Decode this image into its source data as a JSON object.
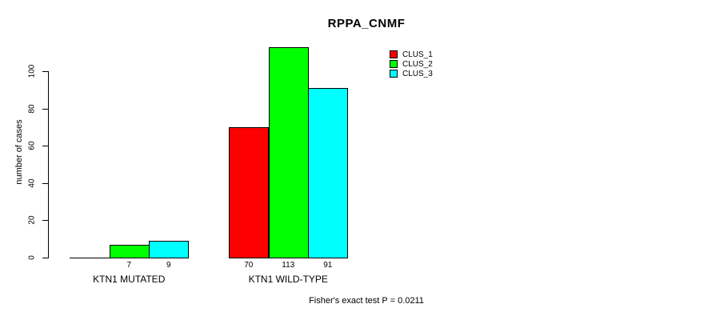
{
  "title": "RPPA_CNMF",
  "chart_data": {
    "type": "bar",
    "title": "RPPA_CNMF",
    "xlabel": "",
    "ylabel": "number of cases",
    "ylim": [
      0,
      100
    ],
    "yticks": [
      0,
      20,
      40,
      60,
      80,
      100
    ],
    "categories": [
      "KTN1 MUTATED",
      "KTN1 WILD-TYPE"
    ],
    "series": [
      {
        "name": "CLUS_1",
        "color": "#ff0000",
        "values": [
          0,
          70
        ]
      },
      {
        "name": "CLUS_2",
        "color": "#00ff00",
        "values": [
          7,
          113
        ]
      },
      {
        "name": "CLUS_3",
        "color": "#00ffff",
        "values": [
          9,
          91
        ]
      }
    ],
    "bar_value_labels": [
      [
        "",
        "7",
        "9"
      ],
      [
        "70",
        "113",
        "91"
      ]
    ],
    "legend_position": "top-right",
    "grid": false,
    "annotation": "Fisher's exact test P = 0.0211"
  },
  "footer": {
    "text": "Fisher's exact test P = 0.0211"
  }
}
